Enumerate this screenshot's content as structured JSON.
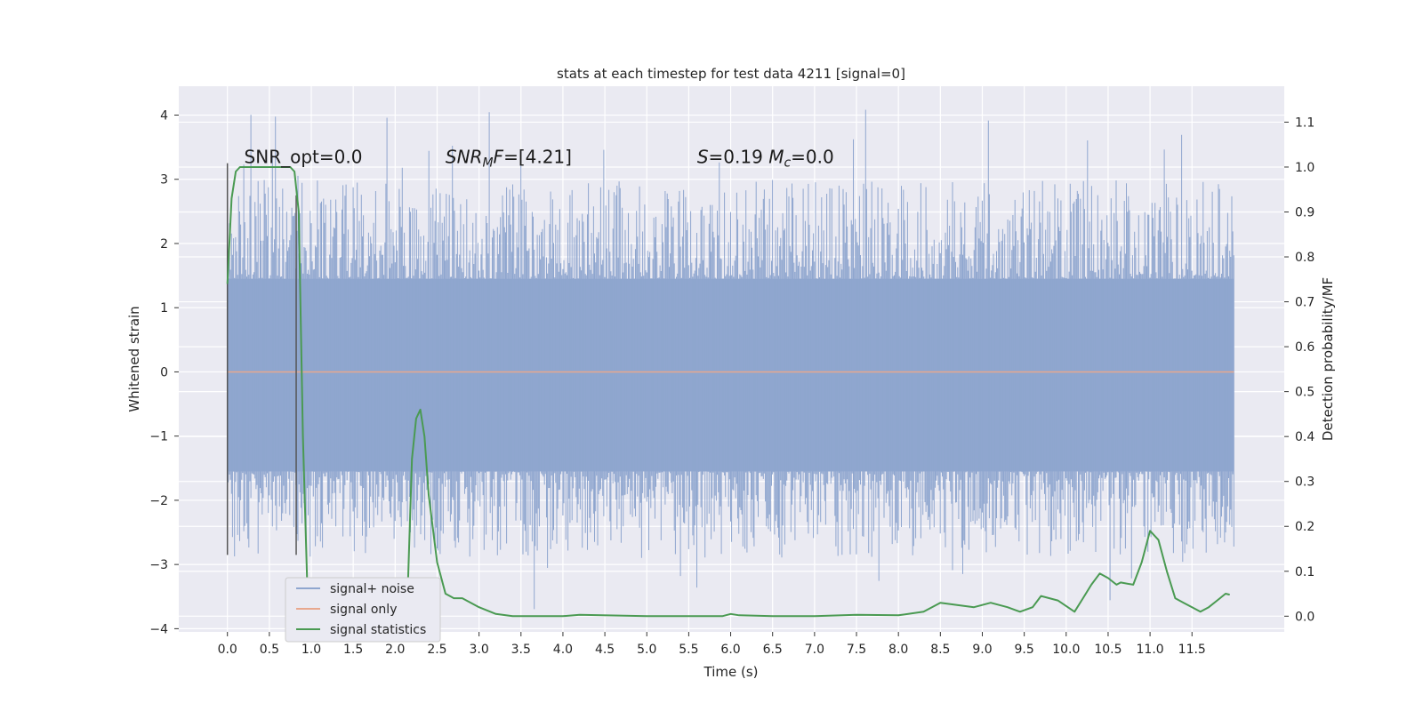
{
  "chart_data": {
    "type": "line",
    "title": "stats at each timestep for test data 4211 [signal=0]",
    "xlabel": "Time (s)",
    "ylabel": "Whitened strain",
    "y2label": "Detection probability/MF",
    "xlim": [
      -0.58,
      12.6
    ],
    "ylim": [
      -4.05,
      4.45
    ],
    "y2lim": [
      -0.035,
      1.18
    ],
    "grid": true,
    "x_ticks": [
      0.0,
      0.5,
      1.0,
      1.5,
      2.0,
      2.5,
      3.0,
      3.5,
      4.0,
      4.5,
      5.0,
      5.5,
      6.0,
      6.5,
      7.0,
      7.5,
      8.0,
      8.5,
      9.0,
      9.5,
      10.0,
      10.5,
      11.0,
      11.5
    ],
    "x_tick_labels": [
      "0.0",
      "0.5",
      "1.0",
      "1.5",
      "2.0",
      "2.5",
      "3.0",
      "3.5",
      "4.0",
      "4.5",
      "5.0",
      "5.5",
      "6.0",
      "6.5",
      "7.0",
      "7.5",
      "8.0",
      "8.5",
      "9.0",
      "9.5",
      "10.0",
      "10.5",
      "11.0",
      "11.5"
    ],
    "y_ticks": [
      -4,
      -3,
      -2,
      -1,
      0,
      1,
      2,
      3,
      4
    ],
    "y_tick_labels": [
      "−4",
      "−3",
      "−2",
      "−1",
      "0",
      "1",
      "2",
      "3",
      "4"
    ],
    "y2_ticks": [
      0.0,
      0.1,
      0.2,
      0.3,
      0.4,
      0.5,
      0.6,
      0.7,
      0.8,
      0.9,
      1.0,
      1.1
    ],
    "y2_tick_labels": [
      "0.0",
      "0.1",
      "0.2",
      "0.3",
      "0.4",
      "0.5",
      "0.6",
      "0.7",
      "0.8",
      "0.9",
      "1.0",
      "1.1"
    ],
    "legend_position": "lower-left",
    "series": [
      {
        "name": "signal+ noise",
        "color": "#8fa6cf",
        "x_range": [
          0.0,
          12.0
        ],
        "band_low": -1.55,
        "band_high": 1.45,
        "spike_max": 4.1,
        "spike_min": -3.7
      },
      {
        "name": "signal only",
        "color": "#e8a88e",
        "x": [
          0.0,
          12.0
        ],
        "y": [
          0.0,
          0.0
        ]
      },
      {
        "name": "signal statistics",
        "color": "#4a9a52",
        "axis": "right",
        "x": [
          0.0,
          0.05,
          0.1,
          0.15,
          0.2,
          0.3,
          0.4,
          0.5,
          0.6,
          0.7,
          0.75,
          0.8,
          0.85,
          0.9,
          0.95,
          1.0,
          1.05,
          1.1,
          1.2,
          1.4,
          1.55,
          1.65,
          1.7,
          1.75,
          1.85,
          2.0,
          2.1,
          2.15,
          2.2,
          2.25,
          2.3,
          2.35,
          2.4,
          2.5,
          2.6,
          2.7,
          2.8,
          3.0,
          3.2,
          3.4,
          4.0,
          4.2,
          5.0,
          5.9,
          6.0,
          6.1,
          6.5,
          7.0,
          7.5,
          8.0,
          8.3,
          8.5,
          8.7,
          8.9,
          9.1,
          9.3,
          9.45,
          9.6,
          9.7,
          9.9,
          10.1,
          10.2,
          10.3,
          10.4,
          10.5,
          10.6,
          10.65,
          10.8,
          10.9,
          11.0,
          11.1,
          11.2,
          11.3,
          11.4,
          11.5,
          11.6,
          11.7,
          11.8,
          11.9,
          11.95
        ],
        "y": [
          0.74,
          0.93,
          0.99,
          1.0,
          1.0,
          1.0,
          1.0,
          1.0,
          1.0,
          1.0,
          1.0,
          0.99,
          0.9,
          0.4,
          0.08,
          0.04,
          0.01,
          0.0,
          0.0,
          0.0,
          0.01,
          0.04,
          0.02,
          0.0,
          0.0,
          0.0,
          0.01,
          0.06,
          0.35,
          0.44,
          0.46,
          0.4,
          0.27,
          0.12,
          0.05,
          0.04,
          0.04,
          0.02,
          0.005,
          0.0,
          0.0,
          0.003,
          0.0,
          0.0,
          0.005,
          0.002,
          0.0,
          0.0,
          0.003,
          0.002,
          0.01,
          0.03,
          0.025,
          0.02,
          0.03,
          0.02,
          0.01,
          0.02,
          0.045,
          0.035,
          0.01,
          0.04,
          0.07,
          0.095,
          0.085,
          0.07,
          0.075,
          0.07,
          0.12,
          0.19,
          0.17,
          0.1,
          0.04,
          0.03,
          0.02,
          0.01,
          0.02,
          0.035,
          0.05,
          0.048
        ]
      }
    ],
    "vertical_lines": [
      {
        "x": 0.0,
        "y_from": -2.85,
        "y_to": 3.25
      },
      {
        "x": 0.82,
        "y_from": -2.85,
        "y_to": 2.75
      }
    ],
    "annotations": [
      {
        "text": "SNR_opt=0.0",
        "x": 0.2,
        "y": 3.25
      },
      {
        "parts": [
          {
            "t": "SNR",
            "i": true
          },
          {
            "t": "M",
            "i": true,
            "sub": true
          },
          {
            "t": "F",
            "i": true
          },
          {
            "t": "=[4.21]",
            "i": false
          }
        ],
        "x": 2.6,
        "y": 3.25
      },
      {
        "parts": [
          {
            "t": "S",
            "i": true
          },
          {
            "t": "=0.19   ",
            "i": false
          },
          {
            "t": "M",
            "i": true
          },
          {
            "t": "c",
            "i": true,
            "sub": true
          },
          {
            "t": "=0.0",
            "i": false
          }
        ],
        "x": 5.6,
        "y": 3.25
      }
    ]
  }
}
